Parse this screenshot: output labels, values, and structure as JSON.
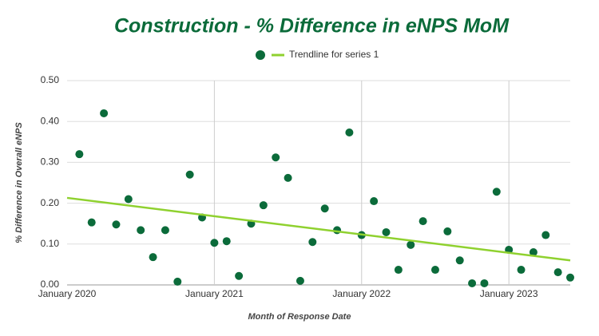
{
  "chart_data": {
    "type": "scatter",
    "title": "Construction - % Difference in eNPS MoM",
    "x_label": "Month of Response Date",
    "y_label": "% Difference in Overall eNPS",
    "xlim": [
      "2020-01",
      "2023-06"
    ],
    "xticks": [
      {
        "value": "2020-01",
        "label": "January 2020"
      },
      {
        "value": "2021-01",
        "label": "January 2021"
      },
      {
        "value": "2022-01",
        "label": "January 2022"
      },
      {
        "value": "2023-01",
        "label": "January 2023"
      }
    ],
    "ylim": [
      0,
      0.5
    ],
    "yticks": [
      {
        "value": 0,
        "label": "0.00"
      },
      {
        "value": 0.1,
        "label": "0.10"
      },
      {
        "value": 0.2,
        "label": "0.20"
      },
      {
        "value": 0.3,
        "label": "0.30"
      },
      {
        "value": 0.4,
        "label": "0.40"
      },
      {
        "value": 0.5,
        "label": "0.50"
      }
    ],
    "grid": true,
    "legend": "top",
    "series": [
      {
        "color": "#0b6b3a",
        "x": [
          "2020-02",
          "2020-03",
          "2020-04",
          "2020-05",
          "2020-06",
          "2020-07",
          "2020-08",
          "2020-09",
          "2020-10",
          "2020-11",
          "2020-12",
          "2021-01",
          "2021-02",
          "2021-03",
          "2021-04",
          "2021-05",
          "2021-06",
          "2021-07",
          "2021-08",
          "2021-09",
          "2021-10",
          "2021-11",
          "2021-12",
          "2022-01",
          "2022-02",
          "2022-03",
          "2022-04",
          "2022-05",
          "2022-06",
          "2022-07",
          "2022-08",
          "2022-09",
          "2022-10",
          "2022-11",
          "2022-12",
          "2023-01",
          "2023-02",
          "2023-03",
          "2023-04",
          "2023-05",
          "2023-06"
        ],
        "values": [
          0.32,
          0.153,
          0.42,
          0.148,
          0.21,
          0.134,
          0.068,
          0.134,
          0.008,
          0.27,
          0.165,
          0.103,
          0.107,
          0.022,
          0.15,
          0.195,
          0.312,
          0.262,
          0.01,
          0.105,
          0.187,
          0.134,
          0.373,
          0.122,
          0.205,
          0.129,
          0.037,
          0.098,
          0.156,
          0.037,
          0.131,
          0.06,
          0.004,
          0.004,
          0.228,
          0.086,
          0.037,
          0.08,
          0.122,
          0.031,
          0.018
        ]
      },
      {
        "name": "Trendline for series 1",
        "color": "#8fd12f",
        "kind": "line",
        "x": [
          "2020-01",
          "2023-06"
        ],
        "values": [
          0.213,
          0.06
        ]
      }
    ]
  }
}
